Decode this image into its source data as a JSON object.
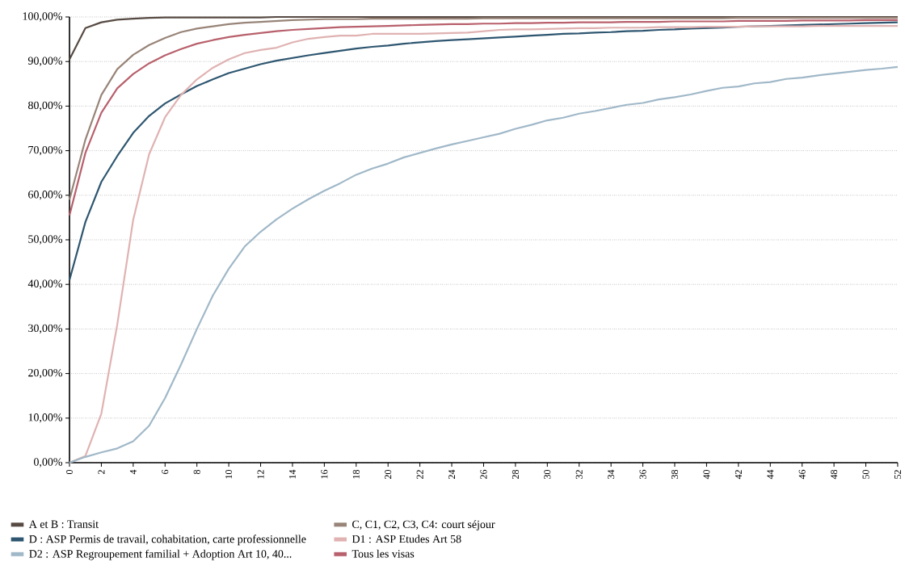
{
  "chart_data": {
    "type": "line",
    "x": [
      0,
      1,
      2,
      3,
      4,
      5,
      6,
      7,
      8,
      9,
      10,
      11,
      12,
      13,
      14,
      15,
      16,
      17,
      18,
      19,
      20,
      21,
      22,
      23,
      24,
      25,
      26,
      27,
      28,
      29,
      30,
      31,
      32,
      33,
      34,
      35,
      36,
      37,
      38,
      39,
      40,
      41,
      42,
      43,
      44,
      45,
      46,
      47,
      48,
      49,
      50,
      51,
      52
    ],
    "series": [
      {
        "name": "A et B : Transit",
        "color": "#574a43",
        "values": [
          90.5,
          97.5,
          98.8,
          99.4,
          99.6,
          99.8,
          99.9,
          99.9,
          99.9,
          99.9,
          99.9,
          99.9,
          99.9,
          100,
          100,
          100,
          100,
          100,
          100,
          100,
          100,
          100,
          100,
          100,
          100,
          100,
          100,
          100,
          100,
          100,
          100,
          100,
          100,
          100,
          100,
          100,
          100,
          100,
          100,
          100,
          100,
          100,
          100,
          100,
          100,
          100,
          100,
          100,
          100,
          100,
          100,
          100,
          100
        ]
      },
      {
        "name": "C, C1, C2, C3, C4: court séjour",
        "color": "#988478",
        "values": [
          59,
          72.5,
          82.5,
          88.3,
          91.5,
          93.7,
          95.3,
          96.6,
          97.4,
          97.9,
          98.4,
          98.7,
          98.9,
          99.1,
          99.3,
          99.4,
          99.5,
          99.5,
          99.5,
          99.6,
          99.6,
          99.6,
          99.6,
          99.6,
          99.6,
          99.6,
          99.7,
          99.7,
          99.7,
          99.7,
          99.7,
          99.7,
          99.7,
          99.7,
          99.7,
          99.7,
          99.7,
          99.7,
          99.7,
          99.7,
          99.7,
          99.7,
          99.8,
          99.8,
          99.8,
          99.8,
          99.8,
          99.8,
          99.8,
          99.8,
          99.8,
          99.8,
          99.8
        ]
      },
      {
        "name": "D : ASP Permis de travail, cohabitation, carte professionnelle",
        "color": "#2e5670",
        "values": [
          41,
          54,
          63,
          68.8,
          74,
          77.8,
          80.6,
          82.6,
          84.5,
          86,
          87.4,
          88.4,
          89.4,
          90.2,
          90.8,
          91.4,
          91.9,
          92.4,
          92.9,
          93.3,
          93.6,
          94,
          94.3,
          94.6,
          94.8,
          95,
          95.2,
          95.4,
          95.6,
          95.8,
          96,
          96.2,
          96.3,
          96.5,
          96.6,
          96.8,
          96.9,
          97.1,
          97.2,
          97.4,
          97.5,
          97.6,
          97.8,
          97.9,
          98,
          98.1,
          98.2,
          98.3,
          98.4,
          98.5,
          98.6,
          98.7,
          98.8
        ]
      },
      {
        "name": "D1 : ASP Etudes Art 58",
        "color": "#e0b2b2",
        "values": [
          0,
          1.5,
          11,
          31,
          54.5,
          69.2,
          77.5,
          82.5,
          86,
          88.6,
          90.5,
          91.9,
          92.6,
          93.1,
          94.3,
          95.1,
          95.5,
          95.8,
          95.8,
          96.2,
          96.2,
          96.2,
          96.2,
          96.3,
          96.4,
          96.5,
          96.8,
          97.1,
          97.2,
          97.2,
          97.3,
          97.4,
          97.5,
          97.5,
          97.6,
          97.6,
          97.6,
          97.7,
          97.7,
          97.7,
          97.8,
          97.8,
          97.8,
          97.9,
          97.9,
          97.9,
          97.9,
          98,
          98,
          98,
          98,
          98,
          98
        ]
      },
      {
        "name": "D2 : ASP Regroupement familial + Adoption Art 10, 40...",
        "color": "#a0b8c8",
        "values": [
          0,
          1.3,
          2.3,
          3.2,
          4.8,
          8.3,
          14.5,
          22,
          30,
          37.5,
          43.5,
          48.5,
          51.8,
          54.6,
          57,
          59.1,
          61,
          62.7,
          64.6,
          66,
          67.1,
          68.5,
          69.5,
          70.5,
          71.4,
          72.2,
          73,
          73.8,
          74.9,
          75.8,
          76.8,
          77.4,
          78.3,
          78.9,
          79.6,
          80.3,
          80.7,
          81.5,
          82,
          82.6,
          83.4,
          84.1,
          84.4,
          85.1,
          85.4,
          86.1,
          86.4,
          86.9,
          87.3,
          87.7,
          88.1,
          88.4,
          88.8
        ]
      },
      {
        "name": "Tous les visas",
        "color": "#b8606c",
        "values": [
          55.5,
          69.5,
          78.5,
          84,
          87.2,
          89.6,
          91.4,
          92.8,
          94,
          94.8,
          95.5,
          96,
          96.4,
          96.8,
          97.1,
          97.3,
          97.5,
          97.7,
          97.8,
          97.9,
          98,
          98.1,
          98.2,
          98.3,
          98.4,
          98.4,
          98.5,
          98.5,
          98.6,
          98.6,
          98.7,
          98.7,
          98.8,
          98.8,
          98.8,
          98.9,
          98.9,
          98.9,
          99,
          99,
          99,
          99,
          99.1,
          99.1,
          99.1,
          99.1,
          99.2,
          99.2,
          99.2,
          99.2,
          99.3,
          99.3,
          99.3
        ]
      }
    ],
    "xlim": [
      0,
      52
    ],
    "xticks": [
      0,
      2,
      4,
      6,
      8,
      10,
      12,
      14,
      16,
      18,
      20,
      22,
      24,
      26,
      28,
      30,
      32,
      34,
      36,
      38,
      40,
      42,
      44,
      46,
      48,
      50,
      52
    ],
    "ylim": [
      0,
      100
    ],
    "yticks": [
      {
        "value": 0,
        "label": "0,00%"
      },
      {
        "value": 10,
        "label": "10,00%"
      },
      {
        "value": 20,
        "label": "20,00%"
      },
      {
        "value": 30,
        "label": "30,00%"
      },
      {
        "value": 40,
        "label": "40,00%"
      },
      {
        "value": 50,
        "label": "50,00%"
      },
      {
        "value": 60,
        "label": "60,00%"
      },
      {
        "value": 70,
        "label": "70,00%"
      },
      {
        "value": 80,
        "label": "80,00%"
      },
      {
        "value": 90,
        "label": "90,00%"
      },
      {
        "value": 100,
        "label": "100,00%"
      }
    ],
    "grid": "y",
    "legend": "bottom"
  }
}
